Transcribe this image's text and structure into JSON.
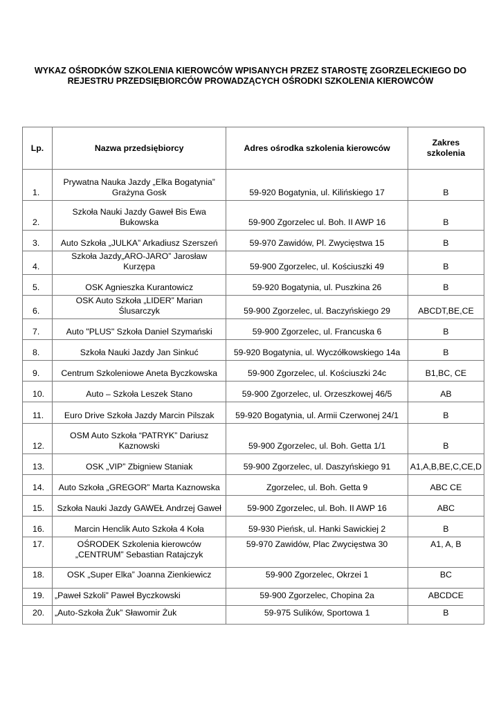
{
  "title": "WYKAZ OŚRODKÓW SZKOLENIA KIEROWCÓW WPISANYCH PRZEZ STAROSTĘ ZGORZELECKIEGO DO REJESTRU PRZEDSIĘBIORCÓW PROWADZĄCYCH OŚRODKI SZKOLENIA KIEROWCÓW",
  "table": {
    "headers": [
      "Lp.",
      "Nazwa przedsiębiorcy",
      "Adres ośrodka szkolenia kierowców",
      "Zakres szkolenia"
    ],
    "rows": [
      {
        "lp": "1.",
        "name": "Prywatna Nauka Jazdy „Elka Bogatynia” Grażyna Gosk",
        "address": "59-920 Bogatynia, ul. Kilińskiego 17",
        "scope": "B"
      },
      {
        "lp": "2.",
        "name": "Szkoła Nauki Jazdy Gaweł Bis Ewa Bukowska",
        "address": "59-900 Zgorzelec ul. Boh. II AWP 16",
        "scope": "B"
      },
      {
        "lp": "3.",
        "name": "Auto Szkoła „JULKA” Arkadiusz Szerszeń",
        "address": "59-970 Zawidów, Pl. Zwycięstwa 15",
        "scope": "B"
      },
      {
        "lp": "4.",
        "name": "Szkoła Jazdy„ARO-JARO” Jarosław Kurzępa",
        "address": "59-900 Zgorzelec, ul. Kościuszki 49",
        "scope": "B"
      },
      {
        "lp": "5.",
        "name": "OSK Agnieszka Kurantowicz",
        "address": "59-920 Bogatynia, ul. Puszkina 26",
        "scope": "B"
      },
      {
        "lp": "6.",
        "name": "OSK Auto Szkoła „LIDER” Marian Ślusarczyk",
        "address": "59-900 Zgorzelec, ul. Baczyńskiego 29",
        "scope": "ABCDT,BE,CE"
      },
      {
        "lp": "7.",
        "name": "Auto \"PLUS\" Szkoła Daniel Szymański",
        "address": "59-900 Zgorzelec, ul. Francuska 6",
        "scope": "B"
      },
      {
        "lp": "8.",
        "name": "Szkoła Nauki Jazdy Jan Sinkuć",
        "address": "59-920 Bogatynia, ul. Wyczółkowskiego 14a",
        "scope": "B"
      },
      {
        "lp": "9.",
        "name": "Centrum Szkoleniowe Aneta Byczkowska",
        "address": "59-900 Zgorzelec, ul. Kościuszki 24c",
        "scope": "B1,BC, CE"
      },
      {
        "lp": "10.",
        "name": "Auto – Szkoła Leszek Stano",
        "address": "59-900 Zgorzelec, ul. Orzeszkowej 46/5",
        "scope": "AB"
      },
      {
        "lp": "11.",
        "name": "Euro Drive Szkoła Jazdy Marcin Pilszak",
        "address": "59-920 Bogatynia, ul. Armii Czerwonej 24/1",
        "scope": "B"
      },
      {
        "lp": "12.",
        "name": "OSM Auto Szkoła “PATRYK” Dariusz Kaznowski",
        "address": "59-900 Zgorzelec, ul. Boh. Getta 1/1",
        "scope": "B"
      },
      {
        "lp": "13.",
        "name": "OSK „VIP” Zbigniew Staniak",
        "address": "59-900 Zgorzelec, ul. Daszyńskiego 91",
        "scope": "A1,A,B,BE,C,CE,D"
      },
      {
        "lp": "14.",
        "name": "Auto Szkoła „GREGOR” Marta Kaznowska",
        "address": "Zgorzelec, ul. Boh. Getta 9",
        "scope": "ABC CE"
      },
      {
        "lp": "15.",
        "name": "Szkoła Nauki Jazdy GAWEŁ Andrzej Gaweł",
        "address": "59-900 Zgorzelec, ul. Boh. II AWP 16",
        "scope": "ABC"
      },
      {
        "lp": "16.",
        "name": "Marcin Henclik Auto Szkoła 4 Koła",
        "address": "59-930 Pieńsk, ul. Hanki Sawickiej 2",
        "scope": "B"
      },
      {
        "lp": "17.",
        "name": "OŚRODEK Szkolenia kierowców „CENTRUM” Sebastian Ratajczyk",
        "address": "59-970 Zawidów, Plac Zwycięstwa 30",
        "scope": "A1, A, B"
      },
      {
        "lp": "18.",
        "name": "OSK „Super Elka” Joanna Zienkiewicz",
        "address": "59-900 Zgorzelec, Okrzei 1",
        "scope": "BC"
      },
      {
        "lp": "19.",
        "name": "„Paweł Szkoli” Paweł Byczkowski",
        "address": "59-900 Zgorzelec, Chopina 2a",
        "scope": "ABCDCE"
      },
      {
        "lp": "20.",
        "name": "„Auto-Szkoła Żuk” Sławomir Żuk",
        "address": "59-975 Sulików, Sportowa 1",
        "scope": "B"
      }
    ]
  }
}
